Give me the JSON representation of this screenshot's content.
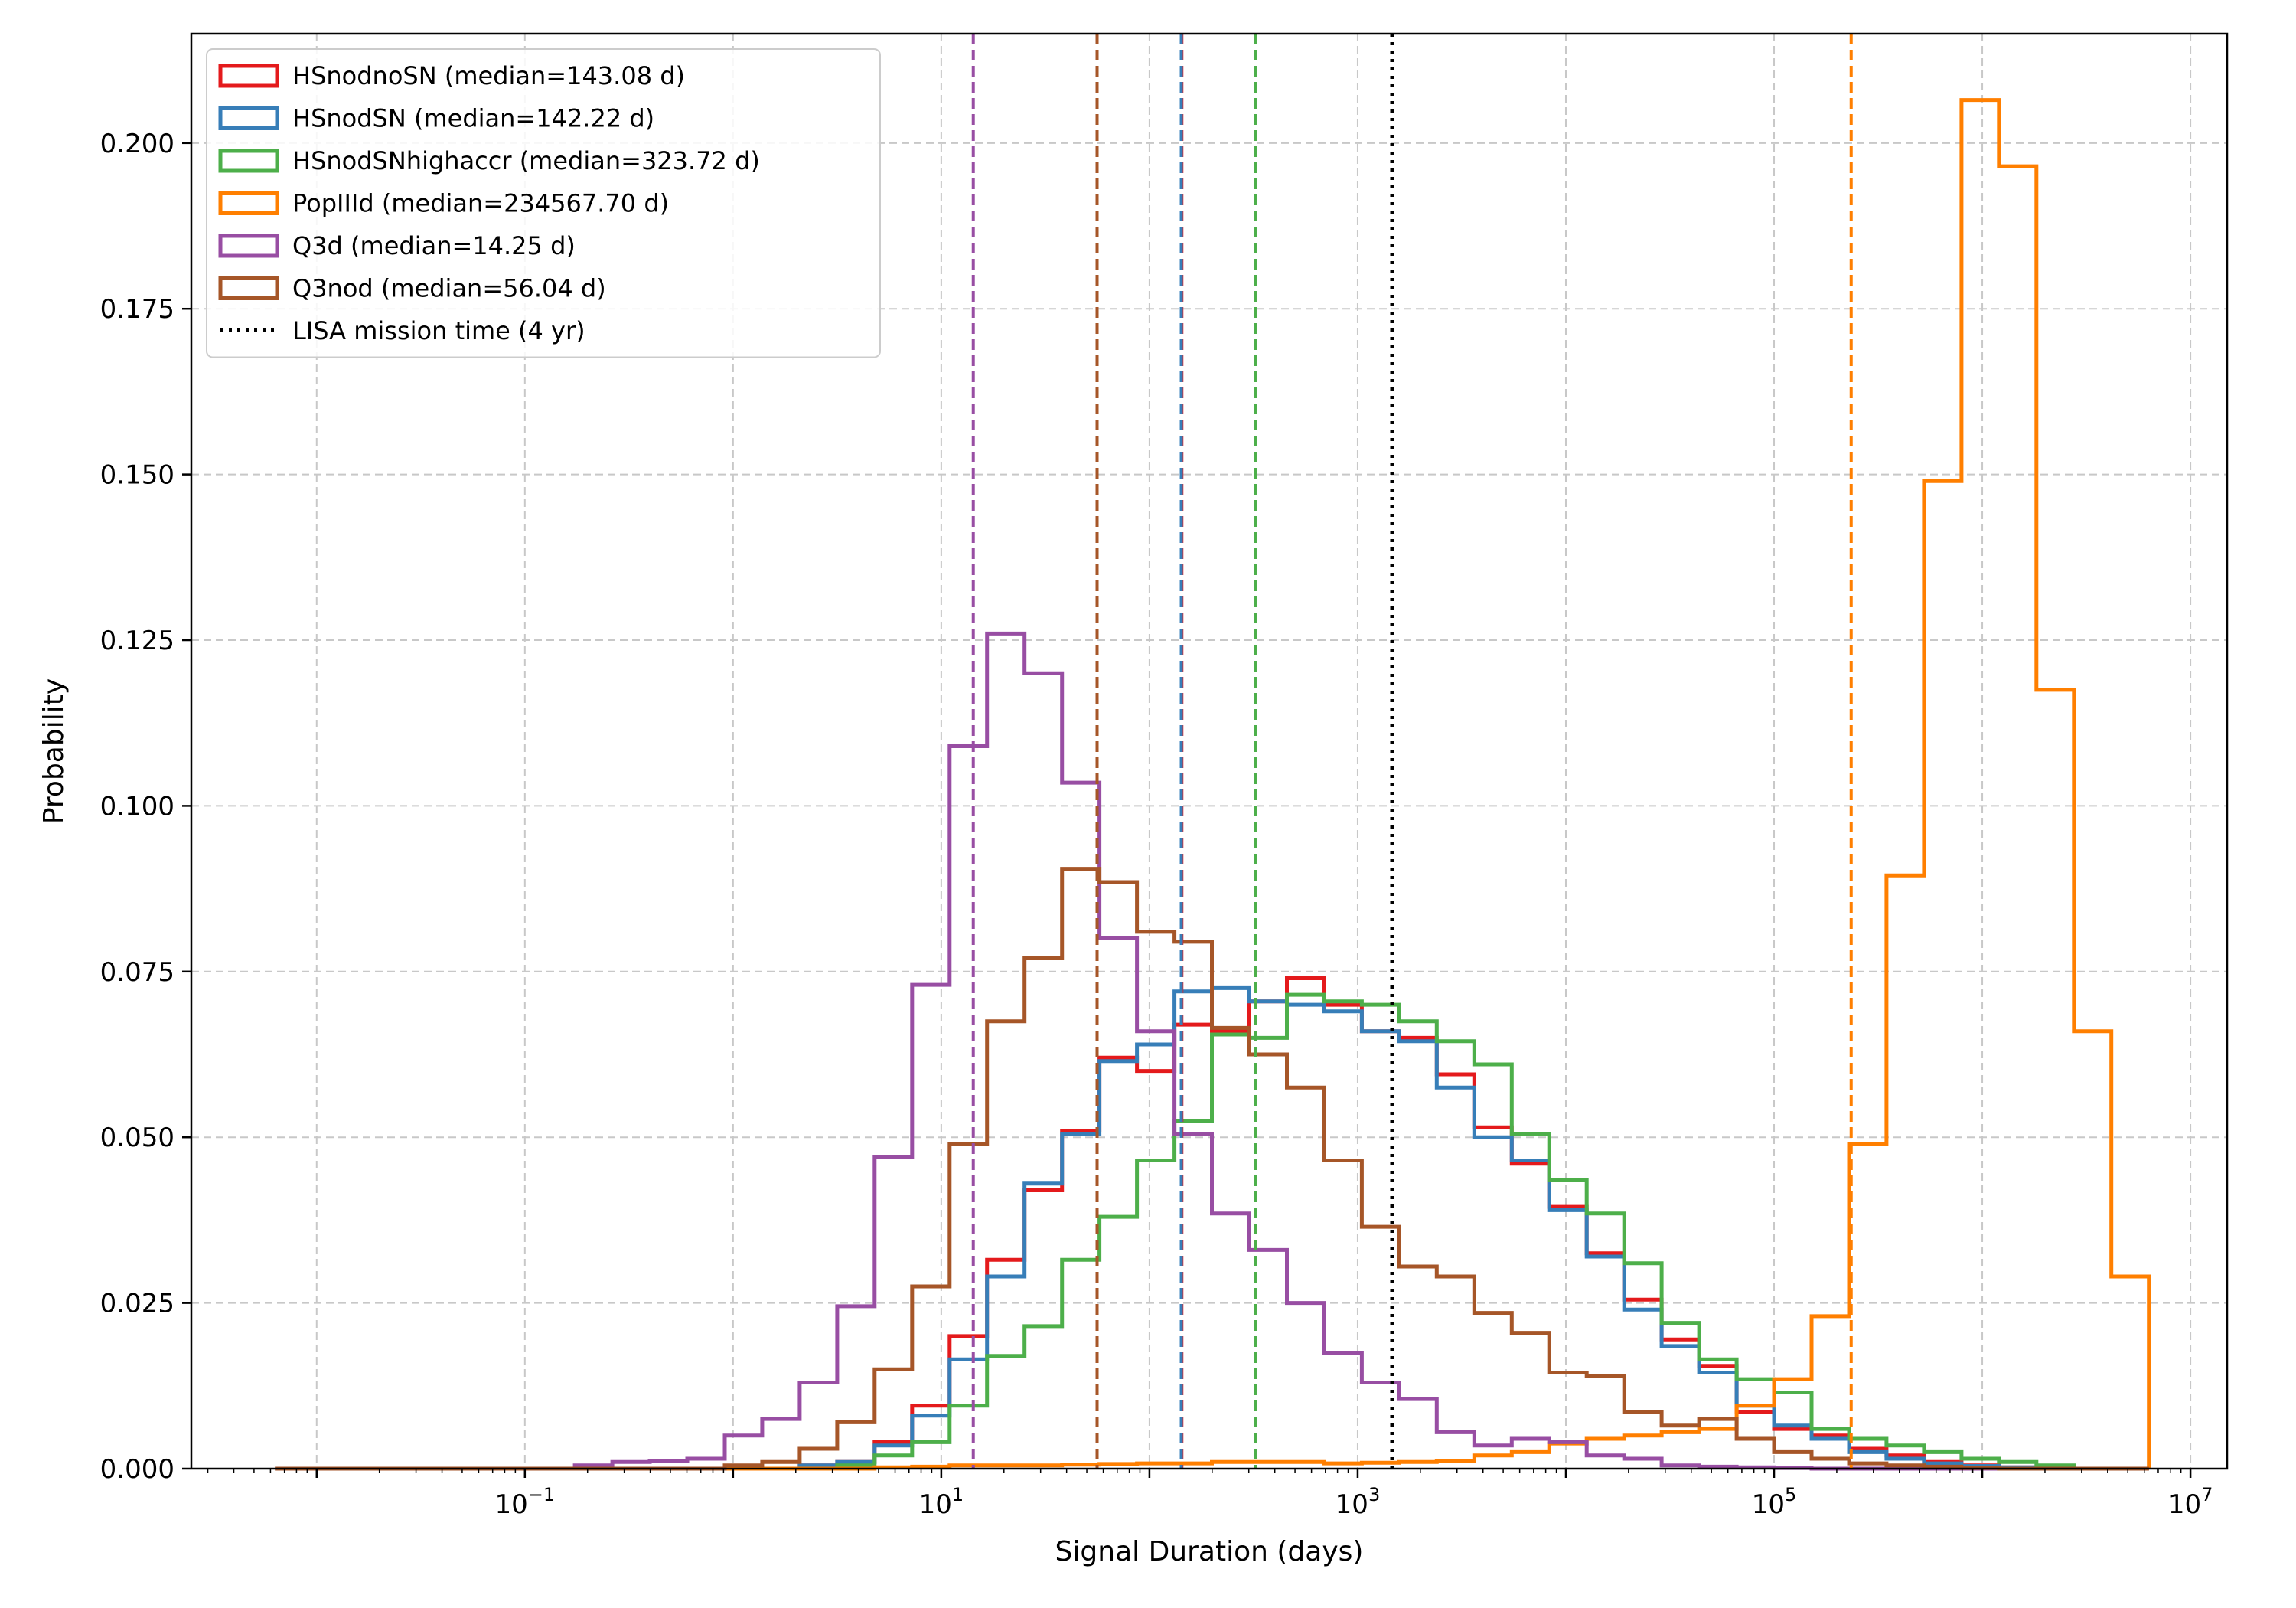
{
  "chart_data": {
    "type": "histogram-step",
    "xlabel": "Signal Duration (days)",
    "ylabel": "Probability",
    "x_scale": "log",
    "xlim": [
      0.0025,
      15000000
    ],
    "ylim": [
      0,
      0.2165
    ],
    "x_ticks": [
      {
        "value": 0.1,
        "base": "10",
        "exp": "−1"
      },
      {
        "value": 10,
        "base": "10",
        "exp": "1"
      },
      {
        "value": 1000,
        "base": "10",
        "exp": "3"
      },
      {
        "value": 100000,
        "base": "10",
        "exp": "5"
      },
      {
        "value": 10000000,
        "base": "10",
        "exp": "7"
      }
    ],
    "y_ticks": [
      {
        "value": 0,
        "label": "0.000"
      },
      {
        "value": 0.025,
        "label": "0.025"
      },
      {
        "value": 0.05,
        "label": "0.050"
      },
      {
        "value": 0.075,
        "label": "0.075"
      },
      {
        "value": 0.1,
        "label": "0.100"
      },
      {
        "value": 0.125,
        "label": "0.125"
      },
      {
        "value": 0.15,
        "label": "0.150"
      },
      {
        "value": 0.175,
        "label": "0.175"
      },
      {
        "value": 0.2,
        "label": "0.200"
      }
    ],
    "grid": true,
    "legend_position": "top-left",
    "bins": {
      "log10_min": -2.2,
      "log10_width": 0.18,
      "count": 50
    },
    "series": [
      {
        "name": "HSnodnoSN (median=143.08 d)",
        "color": "#e41a1c",
        "median": 143.08,
        "values": [
          0,
          0,
          0,
          0,
          0,
          0,
          0,
          0,
          0,
          0,
          0,
          0,
          0,
          0,
          0.0005,
          0.001,
          0.004,
          0.0095,
          0.02,
          0.0315,
          0.042,
          0.051,
          0.062,
          0.06,
          0.067,
          0.066,
          0.0705,
          0.074,
          0.07,
          0.066,
          0.065,
          0.0595,
          0.0515,
          0.046,
          0.0395,
          0.0325,
          0.0255,
          0.0195,
          0.0155,
          0.0085,
          0.006,
          0.005,
          0.003,
          0.002,
          0.001,
          0.0005,
          0.0002,
          0.0001,
          0,
          0
        ]
      },
      {
        "name": "HSnodSN (median=142.22 d)",
        "color": "#377eb8",
        "median": 142.22,
        "values": [
          0,
          0,
          0,
          0,
          0,
          0,
          0,
          0,
          0,
          0,
          0,
          0,
          0,
          0,
          0.0005,
          0.001,
          0.0035,
          0.008,
          0.0165,
          0.029,
          0.043,
          0.0505,
          0.0615,
          0.064,
          0.072,
          0.0725,
          0.0705,
          0.07,
          0.069,
          0.066,
          0.0645,
          0.0575,
          0.05,
          0.0465,
          0.039,
          0.032,
          0.024,
          0.0185,
          0.0145,
          0.0095,
          0.0065,
          0.0045,
          0.0025,
          0.0015,
          0.0008,
          0.0004,
          0.0002,
          0.0001,
          0,
          0
        ]
      },
      {
        "name": "HSnodSNhighaccr (median=323.72 d)",
        "color": "#4daf4a",
        "median": 323.72,
        "values": [
          0,
          0,
          0,
          0,
          0,
          0,
          0,
          0,
          0,
          0,
          0,
          0,
          0,
          0,
          0,
          0.0005,
          0.002,
          0.004,
          0.0095,
          0.017,
          0.0215,
          0.0315,
          0.038,
          0.0465,
          0.0525,
          0.0655,
          0.065,
          0.0715,
          0.0705,
          0.07,
          0.0675,
          0.0645,
          0.061,
          0.0505,
          0.0435,
          0.0385,
          0.031,
          0.022,
          0.0165,
          0.0135,
          0.0115,
          0.006,
          0.0045,
          0.0035,
          0.0025,
          0.0015,
          0.001,
          0.0005,
          0,
          0
        ]
      },
      {
        "name": "PopIIId (median=234567.70 d)",
        "color": "#ff7f00",
        "median": 234567.7,
        "values": [
          0,
          0,
          0,
          0,
          0,
          0,
          0,
          0,
          0,
          0,
          0,
          0,
          0,
          0,
          0,
          0,
          0.0002,
          0.0003,
          0.0005,
          0.0005,
          0.0005,
          0.0006,
          0.0007,
          0.0008,
          0.0008,
          0.001,
          0.001,
          0.001,
          0.0008,
          0.0009,
          0.001,
          0.0012,
          0.002,
          0.0025,
          0.0038,
          0.0045,
          0.005,
          0.0055,
          0.006,
          0.0095,
          0.0135,
          0.023,
          0.049,
          0.0895,
          0.149,
          0.2065,
          0.1965,
          0.1175,
          0.066,
          0.029
        ]
      },
      {
        "name": "Q3d (median=14.25 d)",
        "color": "#984ea3",
        "median": 14.25,
        "values": [
          0,
          0,
          0,
          0,
          0,
          0,
          0,
          0,
          0.0005,
          0.001,
          0.0012,
          0.0015,
          0.005,
          0.0075,
          0.013,
          0.0245,
          0.047,
          0.073,
          0.109,
          0.126,
          0.12,
          0.1035,
          0.08,
          0.066,
          0.0505,
          0.0385,
          0.033,
          0.025,
          0.0175,
          0.013,
          0.0105,
          0.0055,
          0.0035,
          0.0045,
          0.004,
          0.002,
          0.0015,
          0.0005,
          0.0003,
          0.0002,
          0.0001,
          0,
          0,
          0,
          0,
          0,
          0,
          0,
          0,
          0
        ]
      },
      {
        "name": "Q3nod (median=56.04 d)",
        "color": "#a65628",
        "median": 56.04,
        "values": [
          0,
          0,
          0,
          0,
          0,
          0,
          0,
          0,
          0,
          0,
          0,
          0,
          0.0005,
          0.001,
          0.003,
          0.007,
          0.015,
          0.0275,
          0.049,
          0.0675,
          0.077,
          0.0905,
          0.0885,
          0.081,
          0.0795,
          0.0665,
          0.0625,
          0.0575,
          0.0465,
          0.0365,
          0.0305,
          0.029,
          0.0235,
          0.0205,
          0.0145,
          0.014,
          0.0085,
          0.0065,
          0.0075,
          0.0045,
          0.0025,
          0.0015,
          0.0008,
          0.0005,
          0.0003,
          0.0001,
          0,
          0,
          0,
          0
        ]
      }
    ],
    "reference_line": {
      "name": "LISA mission time (4 yr)",
      "value": 1461,
      "color": "#000000"
    }
  }
}
